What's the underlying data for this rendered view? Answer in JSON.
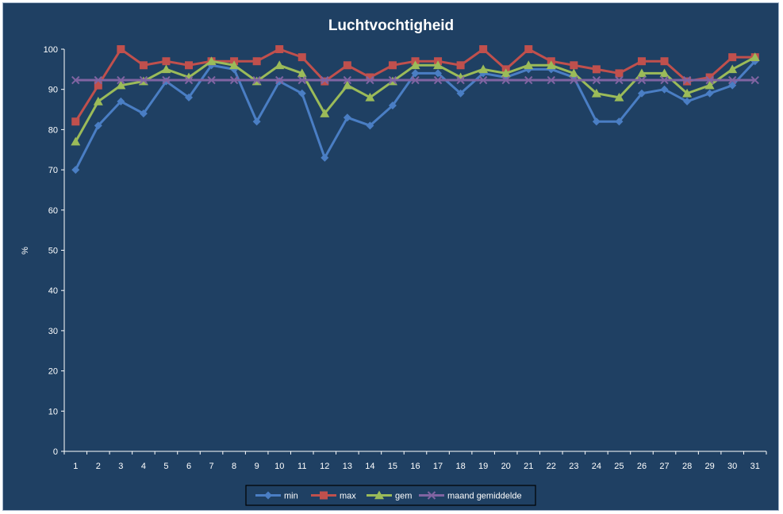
{
  "chart_data": {
    "type": "line",
    "title": "Luchtvochtigheid",
    "xlabel": "",
    "ylabel": "%",
    "ylim": [
      0,
      100
    ],
    "yticks": [
      0,
      10,
      20,
      30,
      40,
      50,
      60,
      70,
      80,
      90,
      100
    ],
    "categories": [
      "1",
      "2",
      "3",
      "4",
      "5",
      "6",
      "7",
      "8",
      "9",
      "10",
      "11",
      "12",
      "13",
      "14",
      "15",
      "16",
      "17",
      "18",
      "19",
      "20",
      "21",
      "22",
      "23",
      "24",
      "25",
      "26",
      "27",
      "28",
      "29",
      "30",
      "31"
    ],
    "grid": false,
    "legend_position": "bottom",
    "series": [
      {
        "name": "min",
        "color": "#4a7ec4",
        "marker": "diamond",
        "values": [
          70,
          81,
          87,
          84,
          92,
          88,
          96,
          95,
          82,
          92,
          89,
          73,
          83,
          81,
          86,
          94,
          94,
          89,
          94,
          93,
          95,
          95,
          93,
          82,
          82,
          89,
          90,
          87,
          89,
          91,
          97
        ]
      },
      {
        "name": "max",
        "color": "#c0504d",
        "marker": "square",
        "values": [
          82,
          91,
          100,
          96,
          97,
          96,
          97,
          97,
          97,
          100,
          98,
          92,
          96,
          93,
          96,
          97,
          97,
          96,
          100,
          95,
          100,
          97,
          96,
          95,
          94,
          97,
          97,
          92,
          93,
          98,
          98
        ]
      },
      {
        "name": "gem",
        "color": "#9bbb59",
        "marker": "triangle",
        "values": [
          77,
          87,
          91,
          92,
          95,
          93,
          97,
          96,
          92,
          96,
          94,
          84,
          91,
          88,
          92,
          96,
          96,
          93,
          95,
          94,
          96,
          96,
          94,
          89,
          88,
          94,
          94,
          89,
          91,
          95,
          98
        ]
      },
      {
        "name": "maand gemiddelde",
        "color": "#8064a2",
        "marker": "x",
        "values": [
          92.3,
          92.3,
          92.3,
          92.3,
          92.3,
          92.3,
          92.3,
          92.3,
          92.3,
          92.3,
          92.3,
          92.3,
          92.3,
          92.3,
          92.3,
          92.3,
          92.3,
          92.3,
          92.3,
          92.3,
          92.3,
          92.3,
          92.3,
          92.3,
          92.3,
          92.3,
          92.3,
          92.3,
          92.3,
          92.3,
          92.3
        ]
      }
    ]
  }
}
